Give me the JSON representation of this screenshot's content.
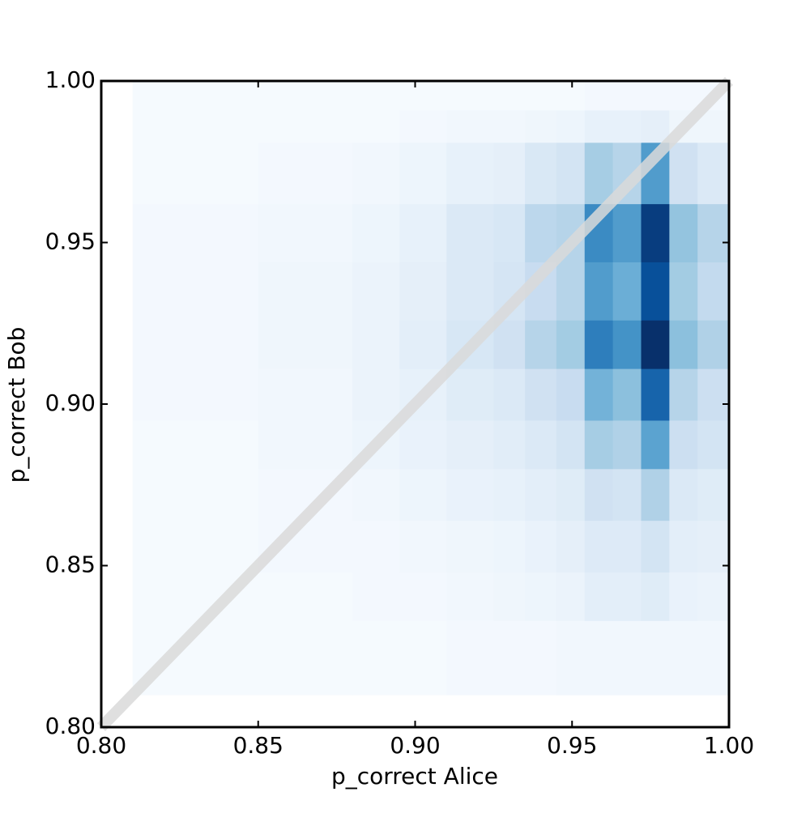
{
  "chart_data": {
    "type": "heatmap",
    "x_label": "p_correct Alice",
    "y_label": "p_correct Bob",
    "xlim": [
      0.8,
      1.0
    ],
    "ylim": [
      0.8,
      1.0
    ],
    "xticks": [
      {
        "value": 0.8,
        "label": "0.80"
      },
      0.85,
      {
        "value": 0.9,
        "label": "0.90"
      },
      0.95,
      {
        "value": 1.0,
        "label": "1.00"
      }
    ],
    "yticks": [
      {
        "value": 0.8,
        "label": "0.80"
      },
      0.85,
      {
        "value": 0.9,
        "label": "0.90"
      },
      0.95,
      {
        "value": 1.0,
        "label": "1.00"
      }
    ],
    "x_edges": [
      0.81,
      0.85,
      0.88,
      0.895,
      0.91,
      0.925,
      0.935,
      0.945,
      0.954,
      0.963,
      0.972,
      0.981,
      0.99,
      1.0
    ],
    "y_edges": [
      0.81,
      0.833,
      0.848,
      0.864,
      0.88,
      0.895,
      0.911,
      0.926,
      0.944,
      0.962,
      0.981,
      0.991,
      1.0
    ],
    "z": [
      [
        1,
        1,
        1,
        1,
        2,
        2,
        2,
        3,
        3,
        3,
        3,
        3,
        3
      ],
      [
        1,
        1,
        2,
        2,
        3,
        4,
        5,
        6,
        10,
        10,
        12,
        7,
        6
      ],
      [
        1,
        2,
        2,
        3,
        4,
        5,
        7,
        9,
        13,
        13,
        18,
        10,
        9
      ],
      [
        1,
        2,
        3,
        5,
        7,
        8,
        10,
        12,
        20,
        18,
        32,
        14,
        12
      ],
      [
        1,
        3,
        5,
        7,
        9,
        11,
        14,
        18,
        35,
        32,
        55,
        22,
        18
      ],
      [
        2,
        3,
        6,
        8,
        12,
        14,
        20,
        24,
        48,
        42,
        80,
        30,
        22
      ],
      [
        2,
        4,
        6,
        10,
        16,
        20,
        30,
        36,
        70,
        62,
        100,
        42,
        32
      ],
      [
        2,
        4,
        6,
        9,
        14,
        17,
        24,
        30,
        58,
        50,
        88,
        36,
        26
      ],
      [
        2,
        3,
        5,
        8,
        14,
        16,
        28,
        30,
        65,
        58,
        95,
        40,
        30
      ],
      [
        1,
        2,
        3,
        5,
        8,
        9,
        15,
        18,
        35,
        30,
        58,
        20,
        14
      ],
      [
        1,
        1,
        1,
        2,
        3,
        3,
        4,
        5,
        8,
        8,
        9,
        4,
        4
      ],
      [
        1,
        1,
        1,
        1,
        1,
        1,
        1,
        1,
        2,
        2,
        2,
        2,
        2
      ]
    ],
    "colormap": [
      "#f7fbff",
      "#deebf7",
      "#c6dbef",
      "#9ecae1",
      "#6baed6",
      "#4292c6",
      "#2171b5",
      "#08519c",
      "#08306b"
    ],
    "diagonal": true,
    "diagonal_color": "#d9d9d9"
  }
}
